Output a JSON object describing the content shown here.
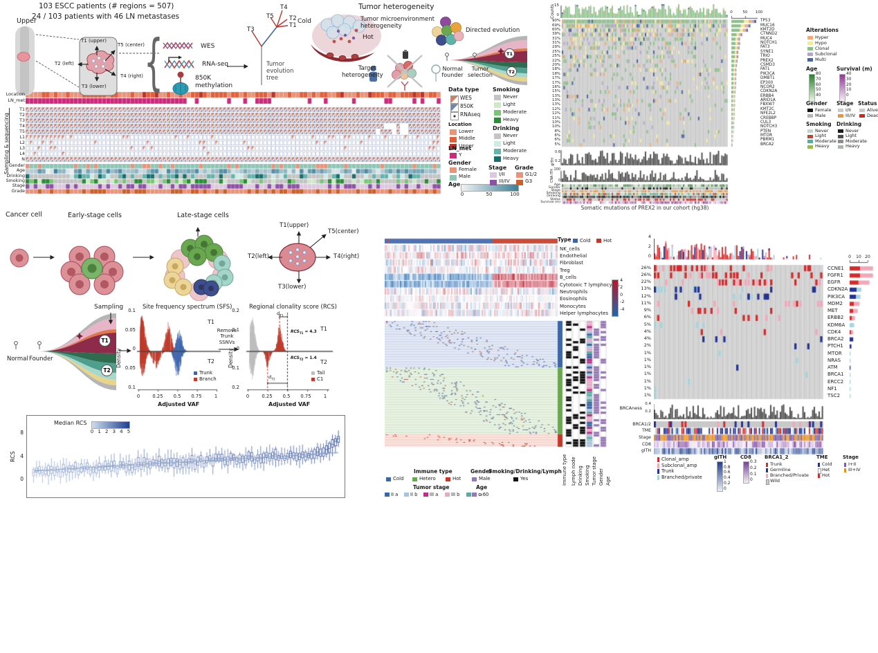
{
  "panelA": {
    "title_line1": "103 ESCC patients (# regions = 507)",
    "title_line2": "24 / 103 patients with 46 LN metastases",
    "upper_label": "Upper",
    "brace": "{",
    "t1": "T1 (upper)",
    "t5": "T5 (center)",
    "t2": "T2 (left)",
    "t4": "T4 (right)",
    "t3": "T3 (lower)",
    "assay_wes": "WES",
    "assay_rna": "RNA-seq",
    "assay_meth": "850K\nmethylation",
    "tree_label": "Tumor\nevolution\ntree",
    "tree_t4": "T4",
    "tree_t5": "T5",
    "tree_t2": "T2",
    "tree_t1": "T1",
    "tree_t3": "T3"
  },
  "panelB": {
    "title": "Tumor heterogeneity",
    "cold": "Cold",
    "hot": "Hot",
    "tme": "Tumor microenvironment\nheterogeneity",
    "directed": "Directed evolution",
    "target": "Target\nheterogeneity",
    "normal_founder": "Normal\nfounder",
    "tumor_selection": "Tumor\nselection",
    "t1": "T1",
    "t2": "T2"
  },
  "sampling": {
    "bracket": "Sampling & sequencing",
    "row_location": "Location",
    "row_lnmet": "LN_met",
    "grid_rows": [
      "T1",
      "T2",
      "T3",
      "T4",
      "T5",
      "L1",
      "L2",
      "L3",
      "L4",
      "N"
    ],
    "anno_rows": [
      "Gender",
      "Age",
      "Drinking",
      "Smoking",
      "Stage",
      "Grade"
    ],
    "n_patients": 103
  },
  "legendA": {
    "data_type": {
      "title": "Data type",
      "wes": "WES",
      "k850": "850K",
      "rna": "RNAseq"
    },
    "location": {
      "title": "Location",
      "items": [
        {
          "label": "Lower",
          "color": "#e9947a"
        },
        {
          "label": "Middle",
          "color": "#e0603c"
        },
        {
          "label": "Upper",
          "color": "#b8342c"
        }
      ]
    },
    "ln_met": {
      "title": "LN_met",
      "items": [
        {
          "label": "Y",
          "color": "#cb2a7b"
        }
      ]
    },
    "gender": {
      "title": "Gender",
      "items": [
        {
          "label": "Female",
          "color": "#e9947a"
        },
        {
          "label": "Male",
          "color": "#8ec6b6"
        }
      ]
    },
    "age": {
      "title": "Age",
      "ticks": [
        "0",
        "50",
        "100"
      ],
      "scale": [
        "#eef2f3",
        "#3d7f98"
      ]
    },
    "smoking": {
      "title": "Smoking",
      "items": [
        {
          "label": "Never",
          "color": "#c4c4c4"
        },
        {
          "label": "Light",
          "color": "#cfe8c8"
        },
        {
          "label": "Moderate",
          "color": "#7cc576"
        },
        {
          "label": "Heavy",
          "color": "#2e8b3a"
        }
      ]
    },
    "drinking": {
      "title": "Drinking",
      "items": [
        {
          "label": "Never",
          "color": "#c4c4c4"
        },
        {
          "label": "Light",
          "color": "#cdeae6"
        },
        {
          "label": "Moderate",
          "color": "#66b3ab"
        },
        {
          "label": "Heavy",
          "color": "#196f6d"
        }
      ]
    },
    "stage": {
      "title": "Stage",
      "items": [
        {
          "label": "I/II",
          "color": "#dcc8e0"
        },
        {
          "label": "III/IV",
          "color": "#8c51a5"
        }
      ]
    },
    "grade": {
      "title": "Grade",
      "items": [
        {
          "label": "G1/2",
          "color": "#e9947a"
        },
        {
          "label": "G3",
          "color": "#cc5f2a"
        }
      ]
    }
  },
  "oncoprint1": {
    "counts_label": "Counts",
    "counts_ticks": [
      "15",
      "0"
    ],
    "bar_axis": [
      "0",
      "50",
      "100"
    ],
    "genes": [
      {
        "name": "TP53",
        "pct": "90%",
        "v": 90
      },
      {
        "name": "MUC16",
        "pct": "69%",
        "v": 69
      },
      {
        "name": "KMT2D",
        "pct": "60%",
        "v": 60
      },
      {
        "name": "CTNND2",
        "pct": "39%",
        "v": 39
      },
      {
        "name": "MUC4",
        "pct": "31%",
        "v": 31
      },
      {
        "name": "NOTCH1",
        "pct": "31%",
        "v": 31
      },
      {
        "name": "FAT3",
        "pct": "29%",
        "v": 29
      },
      {
        "name": "SYNE1",
        "pct": "25%",
        "v": 25
      },
      {
        "name": "TRIO",
        "pct": "25%",
        "v": 25
      },
      {
        "name": "PREX2",
        "pct": "22%",
        "v": 22
      },
      {
        "name": "CSMD3",
        "pct": "20%",
        "v": 20
      },
      {
        "name": "FAT1",
        "pct": "18%",
        "v": 18
      },
      {
        "name": "PIK3CA",
        "pct": "18%",
        "v": 18
      },
      {
        "name": "DMBT1",
        "pct": "17%",
        "v": 17
      },
      {
        "name": "EP300",
        "pct": "17%",
        "v": 17
      },
      {
        "name": "NCOR2",
        "pct": "16%",
        "v": 16
      },
      {
        "name": "CDKN2A",
        "pct": "15%",
        "v": 15
      },
      {
        "name": "ERBB4",
        "pct": "13%",
        "v": 13
      },
      {
        "name": "ARID1A",
        "pct": "13%",
        "v": 13
      },
      {
        "name": "FBXW7",
        "pct": "13%",
        "v": 13
      },
      {
        "name": "KMT2C",
        "pct": "12%",
        "v": 12
      },
      {
        "name": "NFE2L2",
        "pct": "12%",
        "v": 12
      },
      {
        "name": "CREBBP",
        "pct": "11%",
        "v": 11
      },
      {
        "name": "CUL3",
        "pct": "10%",
        "v": 10
      },
      {
        "name": "NOTCH3",
        "pct": "10%",
        "v": 10
      },
      {
        "name": "PTEN",
        "pct": "8%",
        "v": 8
      },
      {
        "name": "MTOR",
        "pct": "6%",
        "v": 6
      },
      {
        "name": "PBRM1",
        "pct": "6%",
        "v": 6
      },
      {
        "name": "BRCA2",
        "pct": "5%",
        "v": 5
      }
    ],
    "gith_label": "gITH",
    "gith_ticks": [
      "0.6",
      "0.2"
    ],
    "cna_label": "CNA ITH",
    "cna_ticks": [
      "100",
      "0"
    ],
    "anno_rows": [
      "Age",
      "Gender",
      "Stage",
      "Smoking",
      "Drinking",
      "Status",
      "Survival (m)"
    ],
    "caption": "Somatic mutations of PREX2 in our cohort (hg38)",
    "legend_alterations": {
      "title": "Alterations",
      "items": [
        {
          "label": "Hyper",
          "color": "#f2aa72"
        },
        {
          "label": "Hypo",
          "color": "#f5e9a0"
        },
        {
          "label": "Clonal",
          "color": "#8dbf8a"
        },
        {
          "label": "Subclonal",
          "color": "#b3a7c8"
        },
        {
          "label": "Multi",
          "color": "#49659c"
        }
      ]
    },
    "legend_age": {
      "title": "Age",
      "ticks": [
        "80",
        "70",
        "60",
        "50",
        "40"
      ],
      "scale": [
        "#2f7d32",
        "#e8f5e3"
      ]
    },
    "legend_survival": {
      "title": "Survival (m)",
      "ticks": [
        "40",
        "30",
        "20",
        "10",
        "0"
      ],
      "scale": [
        "#8e3a92",
        "#f7eef8"
      ]
    },
    "legend_gender": {
      "title": "Gender",
      "items": [
        {
          "label": "Female",
          "color": "#111111"
        },
        {
          "label": "Male",
          "color": "#b5b5b5"
        }
      ]
    },
    "legend_stage": {
      "title": "Stage",
      "items": [
        {
          "label": "I/II",
          "color": "#c9c9c9"
        },
        {
          "label": "III/IV",
          "color": "#e8963c"
        }
      ]
    },
    "legend_status": {
      "title": "Status",
      "items": [
        {
          "label": "Alive",
          "color": "#c9c9c9"
        },
        {
          "label": "Dead",
          "color": "#cc2a1e"
        }
      ]
    },
    "legend_smoking": {
      "title": "Smoking",
      "items": [
        {
          "label": "Never",
          "color": "#bcd6cc"
        },
        {
          "label": "Light",
          "color": "#c2452f"
        },
        {
          "label": "Moderate",
          "color": "#5fa99e"
        },
        {
          "label": "Heavy",
          "color": "#9aba4e"
        }
      ]
    },
    "legend_drinking": {
      "title": "Drinking",
      "items": [
        {
          "label": "Never",
          "color": "#1a1a1a"
        },
        {
          "label": "Light",
          "color": "#4d4d4d"
        },
        {
          "label": "Moderate",
          "color": "#8c8c8c"
        },
        {
          "label": "Heavy",
          "color": "#a9b5a5"
        }
      ]
    }
  },
  "panelC": {
    "cancer": "Cancer cell",
    "early": "Early-stage cells",
    "late": "Late-stage cells",
    "t1": "T1(upper)",
    "t5": "T5(center)",
    "t2": "T2(left)",
    "t4": "T4(right)",
    "t3": "T3(lower)"
  },
  "fish": {
    "sampling": "Sampling",
    "normal": "Normal",
    "founder": "Founder",
    "t1": "T1",
    "t2": "T2"
  },
  "sfs": {
    "title": "Site frequency spectrum (SFS)",
    "ylabel": "Density",
    "yticks": [
      "0.1",
      "0.05",
      "0",
      "0.05",
      "0.1"
    ],
    "t1": "T1",
    "t2": "T2",
    "legend": [
      {
        "label": "Trunk",
        "color": "#3f66ad"
      },
      {
        "label": "Branch",
        "color": "#bf3b2b"
      }
    ],
    "xticks": [
      "0",
      "0.25",
      "0.5",
      "0.75",
      "1"
    ],
    "xlabel": "Adjusted VAF"
  },
  "remove_label": "Remove\nTrunk\nSSNVs",
  "rcs": {
    "title": "Regional clonality score (RCS)",
    "ylabel": "Density",
    "yticks": [
      "0.2",
      "0.1",
      "0",
      "0.1",
      "0.2"
    ],
    "t1": "T1",
    "t2": "T2",
    "d1_base": "d",
    "d1_sub": "T1",
    "d2_base": "d",
    "d2_sub": "T2",
    "ann1_base": "RCS",
    "ann1_sub": "T1",
    "ann1_val": "= 4.3",
    "ann2_base": "RCS",
    "ann2_sub": "T2",
    "ann2_val": "= 1.4",
    "legend": [
      {
        "label": "Tail",
        "color": "#bdbdbd"
      },
      {
        "label": "C1",
        "color": "#bf3b2b"
      }
    ],
    "xticks": [
      "0",
      "0.25",
      "0.5",
      "0.75",
      "1"
    ],
    "xlabel": "Adjusted VAF"
  },
  "median_rcs": {
    "legend_label": "Median RCS",
    "legend_ticks": [
      "0",
      "1",
      "2",
      "3",
      "4",
      "5"
    ],
    "ylabel": "RCS",
    "yticks": [
      "8",
      "4",
      "0"
    ],
    "scale": [
      "#cddcee",
      "#1f3f8f"
    ]
  },
  "immune": {
    "type_label": "Type",
    "legend": [
      {
        "label": "Cold",
        "color": "#3f63a8"
      },
      {
        "label": "Hot",
        "color": "#c0392b"
      }
    ],
    "colorbar_ticks": [
      "4",
      "2",
      "0",
      "-2",
      "-4"
    ],
    "scale_pos": "#b2182b",
    "scale_neg": "#2166ac",
    "rows": [
      "NK_cells",
      "Endothelial",
      "Fibroblast",
      "Treg",
      "B_cells",
      "Cytotoxic T lymphocytes",
      "Neutrophils",
      "Eosinophils",
      "Monocytes",
      "Helper lymphocytes"
    ]
  },
  "strip": {
    "col_labels": [
      "Immune type",
      "Lymph node",
      "Drinking",
      "Smoking",
      "Tumor stage",
      "Gender",
      "Age"
    ],
    "legend_immune": {
      "title": "Immune type",
      "items": [
        {
          "label": "Cold",
          "color": "#3c66a5"
        },
        {
          "label": "Hetero",
          "color": "#6aa84f"
        },
        {
          "label": "Hot",
          "color": "#c0392b"
        }
      ]
    },
    "legend_gender": {
      "title": "Gender",
      "items": [
        {
          "label": "Male",
          "color": "#9678b6"
        }
      ]
    },
    "legend_sdl": {
      "title": "Smoking/Drinking/Lymph",
      "items": [
        {
          "label": "Yes",
          "color": "#111111"
        }
      ]
    },
    "legend_stage": {
      "title": "Tumor stage",
      "items": [
        {
          "label": "II a",
          "color": "#3c66a5"
        },
        {
          "label": "II b",
          "color": "#a8c4e0"
        },
        {
          "label": "III a",
          "color": "#b5338a"
        },
        {
          "label": "III b",
          "color": "#e8a8c8"
        },
        {
          "label": "III c",
          "color": "#5fa99e"
        }
      ]
    },
    "legend_age": {
      "title": "Age",
      "items": [
        {
          "label": "≥60",
          "color": "#9678b6"
        }
      ]
    }
  },
  "oncoprint2": {
    "yticks": [
      "4",
      "2",
      "0"
    ],
    "bar_axis": [
      "0",
      "10",
      "20"
    ],
    "genes": [
      {
        "name": "CCNE1",
        "pct": "26%",
        "v": 26,
        "type": "amp"
      },
      {
        "name": "FGFR1",
        "pct": "26%",
        "v": 26,
        "type": "amp"
      },
      {
        "name": "EGFR",
        "pct": "22%",
        "v": 22,
        "type": "amp"
      },
      {
        "name": "CDKN2A",
        "pct": "13%",
        "v": 13,
        "type": "del"
      },
      {
        "name": "PIK3CA",
        "pct": "12%",
        "v": 12,
        "type": "del"
      },
      {
        "name": "MDM2",
        "pct": "11%",
        "v": 11,
        "type": "sub"
      },
      {
        "name": "MET",
        "pct": "9%",
        "v": 9,
        "type": "amp"
      },
      {
        "name": "ERBB2",
        "pct": "6%",
        "v": 6,
        "type": "amp"
      },
      {
        "name": "KDM6A",
        "pct": "5%",
        "v": 5,
        "type": "branched"
      },
      {
        "name": "CDK4",
        "pct": "4%",
        "v": 4,
        "type": "amp"
      },
      {
        "name": "BRCA2",
        "pct": "4%",
        "v": 4,
        "type": "trunk"
      },
      {
        "name": "PTCH1",
        "pct": "2%",
        "v": 2,
        "type": "trunk"
      },
      {
        "name": "MTOR",
        "pct": "1%",
        "v": 1,
        "type": "branched"
      },
      {
        "name": "NRAS",
        "pct": "1%",
        "v": 1,
        "type": "branched"
      },
      {
        "name": "ATM",
        "pct": "1%",
        "v": 1,
        "type": "trunk"
      },
      {
        "name": "BRCA1",
        "pct": "1%",
        "v": 1,
        "type": "branched"
      },
      {
        "name": "ERCC2",
        "pct": "1%",
        "v": 1,
        "type": "branched"
      },
      {
        "name": "NF1",
        "pct": "1%",
        "v": 1,
        "type": "branched"
      },
      {
        "name": "TSC2",
        "pct": "1%",
        "v": 1,
        "type": "branched"
      }
    ],
    "brcaness_label": "BRCAness",
    "brcaness_ticks": [
      "0.4",
      "0.2"
    ],
    "anno_rows": [
      "BRCA1/2",
      "TME",
      "Stage",
      "CD8",
      "gITH"
    ],
    "legend_amp": {
      "items": [
        {
          "label": "Clonal_amp",
          "color": "#d22c2c"
        },
        {
          "label": "Subclonal_amp",
          "color": "#f2a8b8"
        },
        {
          "label": "Trunk",
          "color": "#26338f"
        },
        {
          "label": "Branched/private",
          "color": "#a5d5dd"
        }
      ]
    },
    "legend_gith": {
      "title": "gITH",
      "ticks": [
        "1",
        "0.8",
        "0.6",
        "0.4",
        "0.2",
        "0"
      ],
      "scale": [
        "#1f3f8f",
        "#eceff5"
      ]
    },
    "legend_cd8": {
      "title": "CD8",
      "ticks": [
        "0.3",
        "0.2",
        "0.1",
        "0"
      ],
      "scale": [
        "#7b3f9e",
        "#f5eef8"
      ]
    },
    "legend_brca": {
      "title": "BRCA1_2",
      "items": [
        {
          "label": "Trunk",
          "color": "#d22c2c"
        },
        {
          "label": "Germline",
          "color": "#26338f"
        },
        {
          "label": "Branched/Private",
          "color": "#f2a8b8"
        },
        {
          "label": "Wild",
          "color": "#c9c9c9"
        }
      ]
    },
    "legend_tme": {
      "title": "TME",
      "items": [
        {
          "label": "Cold",
          "color": "#26338f"
        },
        {
          "label": "Het",
          "color": "#ffffff"
        },
        {
          "label": "Hot",
          "color": "#d22c2c"
        }
      ]
    },
    "legend_stage": {
      "title": "Stage",
      "items": [
        {
          "label": "I+II",
          "color": "#7b5ea7"
        },
        {
          "label": "III+IV",
          "color": "#e8921e"
        }
      ]
    }
  }
}
